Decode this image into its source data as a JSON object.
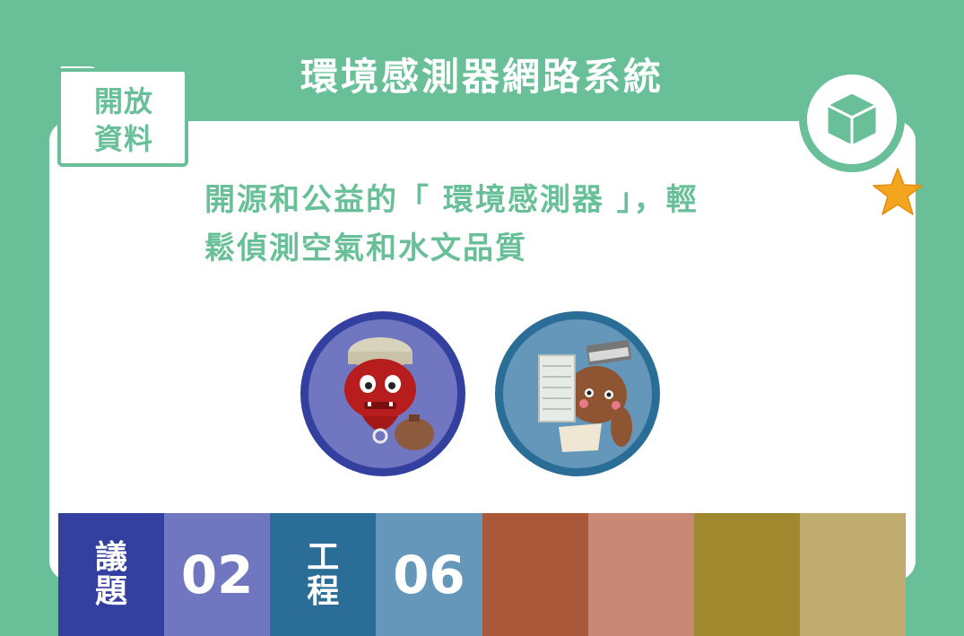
{
  "header": {
    "title": "環境感測器網路系統"
  },
  "tag": {
    "line1": "開放",
    "line2": "資料"
  },
  "badge": {
    "icon": "cube-icon",
    "accent_icon": "star-icon"
  },
  "subtitle": {
    "line1": "開源和公益的「 環境感測器 」，輕",
    "line2": "鬆偵測空氣和水文品質"
  },
  "illustrations": [
    {
      "name": "red-monster-explorer-avatar"
    },
    {
      "name": "document-carrier-avatar"
    }
  ],
  "footer": {
    "cells": [
      {
        "label_top": "議",
        "label_bottom": "題",
        "color": "#3340a0"
      },
      {
        "value": "02",
        "color": "#7077c0"
      },
      {
        "label_top": "工",
        "label_bottom": "程",
        "color": "#2a6e98"
      },
      {
        "value": "06",
        "color": "#6497ba"
      },
      {
        "color": "#aa583a"
      },
      {
        "color": "#c98875"
      },
      {
        "color": "#a0882e"
      },
      {
        "color": "#bfac6e"
      }
    ]
  },
  "colors": {
    "background": "#68bf98",
    "accent": "#68bf98",
    "star": "#f2a51d"
  }
}
